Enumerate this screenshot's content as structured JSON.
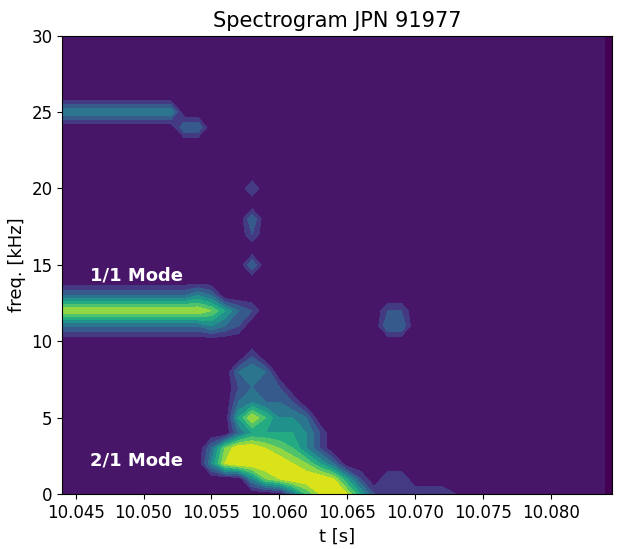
{
  "chart_data": {
    "type": "heatmap",
    "title": "Spectrogram JPN 91977",
    "x_label": "t [s]",
    "y_label": "freq. [kHz]",
    "xlim": [
      10.044,
      10.0845
    ],
    "ylim": [
      0,
      30
    ],
    "xticks": [
      10.045,
      {
        "value": 10.05,
        "label": "10.050"
      },
      10.055,
      {
        "value": 10.06,
        "label": "10.060"
      },
      10.065,
      {
        "value": 10.07,
        "label": "10.070"
      },
      10.075,
      {
        "value": 10.08,
        "label": "10.080"
      }
    ],
    "yticks": [
      0,
      5,
      10,
      15,
      20,
      25,
      30
    ],
    "zlim": [
      0,
      9
    ],
    "annotations": [
      {
        "text": "1/1 Mode",
        "x": 10.0495,
        "y": 14.3
      },
      {
        "text": "2/1 Mode",
        "x": 10.0495,
        "y": 2.2
      }
    ],
    "x": [
      10.044,
      10.045,
      10.046,
      10.047,
      10.048,
      10.049,
      10.05,
      10.051,
      10.052,
      10.053,
      10.054,
      10.055,
      10.056,
      10.057,
      10.058,
      10.059,
      10.06,
      10.061,
      10.062,
      10.063,
      10.064,
      10.065,
      10.066,
      10.067,
      10.068,
      10.069,
      10.07,
      10.071,
      10.072,
      10.073,
      10.074,
      10.075,
      10.076,
      10.077,
      10.078,
      10.079,
      10.08,
      10.081,
      10.082,
      10.083,
      10.084
    ],
    "y": [
      0,
      1,
      2,
      3,
      4,
      5,
      6,
      7,
      8,
      9,
      10,
      11,
      12,
      13,
      14,
      15,
      16,
      17,
      18,
      19,
      20,
      21,
      22,
      23,
      24,
      25,
      26,
      27,
      28,
      29,
      30
    ],
    "z": [
      [
        0,
        0,
        0,
        0,
        0,
        0,
        0,
        0,
        0,
        0,
        0,
        0,
        0,
        0,
        0,
        0,
        0,
        3,
        6,
        8,
        9,
        8,
        5,
        2,
        1,
        2,
        2,
        2,
        2,
        1,
        1,
        0,
        0,
        0,
        0,
        0,
        0,
        0,
        0,
        0,
        0
      ],
      [
        0,
        0,
        0,
        0,
        0,
        0,
        0,
        0,
        0,
        0,
        0,
        0,
        0,
        0,
        4,
        7,
        8,
        9,
        9,
        9,
        8,
        5,
        2,
        0,
        2,
        2,
        0,
        0,
        0,
        0,
        0,
        0,
        0,
        0,
        0,
        0,
        0,
        0,
        0,
        0,
        0
      ],
      [
        0,
        0,
        0,
        0,
        0,
        0,
        0,
        0,
        0,
        0,
        0,
        4,
        8,
        9,
        9,
        9,
        9,
        8,
        7,
        5,
        3,
        0,
        0,
        0,
        0,
        0,
        0,
        0,
        0,
        0,
        0,
        0,
        0,
        0,
        0,
        0,
        0,
        0,
        0,
        0,
        0
      ],
      [
        0,
        0,
        0,
        0,
        0,
        0,
        0,
        0,
        0,
        0,
        0,
        3,
        7,
        9,
        9,
        8,
        7,
        6,
        4,
        2,
        0,
        0,
        0,
        0,
        0,
        0,
        0,
        0,
        0,
        0,
        0,
        0,
        0,
        0,
        0,
        0,
        0,
        0,
        0,
        0,
        0
      ],
      [
        0,
        0,
        0,
        0,
        0,
        0,
        0,
        0,
        0,
        0,
        0,
        0,
        0,
        3,
        5,
        5,
        5,
        5,
        4,
        2,
        0,
        0,
        0,
        0,
        0,
        0,
        0,
        0,
        0,
        0,
        0,
        0,
        0,
        0,
        0,
        0,
        0,
        0,
        0,
        0,
        0
      ],
      [
        0,
        0,
        0,
        0,
        0,
        0,
        0,
        0,
        0,
        0,
        0,
        0,
        0,
        5,
        8,
        6,
        4,
        4,
        3,
        0,
        0,
        0,
        0,
        0,
        0,
        0,
        0,
        0,
        0,
        0,
        0,
        0,
        0,
        0,
        0,
        0,
        0,
        0,
        0,
        0,
        0
      ],
      [
        0,
        0,
        0,
        0,
        0,
        0,
        0,
        0,
        0,
        0,
        0,
        0,
        0,
        3,
        4,
        3,
        3,
        2,
        0,
        0,
        0,
        0,
        0,
        0,
        0,
        0,
        0,
        0,
        0,
        0,
        0,
        0,
        0,
        0,
        0,
        0,
        0,
        0,
        0,
        0,
        0
      ],
      [
        0,
        0,
        0,
        0,
        0,
        0,
        0,
        0,
        0,
        0,
        0,
        0,
        0,
        2,
        3,
        3,
        2,
        0,
        0,
        0,
        0,
        0,
        0,
        0,
        0,
        0,
        0,
        0,
        0,
        0,
        0,
        0,
        0,
        0,
        0,
        0,
        0,
        0,
        0,
        0,
        0
      ],
      [
        0,
        0,
        0,
        0,
        0,
        0,
        0,
        0,
        0,
        0,
        0,
        0,
        0,
        3,
        4,
        3,
        0,
        0,
        0,
        0,
        0,
        0,
        0,
        0,
        0,
        0,
        0,
        0,
        0,
        0,
        0,
        0,
        0,
        0,
        0,
        0,
        0,
        0,
        0,
        0,
        0
      ],
      [
        0,
        0,
        0,
        0,
        0,
        0,
        0,
        0,
        0,
        0,
        0,
        0,
        0,
        0,
        2,
        0,
        0,
        0,
        0,
        0,
        0,
        0,
        0,
        0,
        0,
        0,
        0,
        0,
        0,
        0,
        0,
        0,
        0,
        0,
        0,
        0,
        0,
        0,
        0,
        0,
        0
      ],
      [
        0,
        0,
        0,
        0,
        0,
        0,
        0,
        0,
        0,
        0,
        0,
        0,
        0,
        0,
        0,
        0,
        0,
        0,
        0,
        0,
        0,
        0,
        0,
        0,
        0,
        0,
        0,
        0,
        0,
        0,
        0,
        0,
        0,
        0,
        0,
        0,
        0,
        0,
        0,
        0,
        0
      ],
      [
        3,
        3,
        3,
        3,
        3,
        3,
        3,
        3,
        3,
        3,
        3,
        4,
        3,
        2,
        0,
        0,
        0,
        0,
        0,
        0,
        0,
        0,
        0,
        0,
        3,
        3,
        0,
        0,
        0,
        0,
        0,
        0,
        0,
        0,
        0,
        0,
        0,
        0,
        0,
        0,
        0
      ],
      [
        8,
        8,
        8,
        8,
        8,
        8,
        8,
        8,
        8,
        8,
        8,
        7,
        5,
        3,
        2,
        0,
        0,
        0,
        0,
        0,
        0,
        0,
        0,
        0,
        2,
        2,
        0,
        0,
        0,
        0,
        0,
        0,
        0,
        0,
        0,
        0,
        0,
        0,
        0,
        0,
        0
      ],
      [
        3,
        3,
        3,
        3,
        3,
        3,
        3,
        3,
        3,
        3,
        4,
        3,
        0,
        0,
        0,
        0,
        0,
        0,
        0,
        0,
        0,
        0,
        0,
        0,
        0,
        0,
        0,
        0,
        0,
        0,
        0,
        0,
        0,
        0,
        0,
        0,
        0,
        0,
        0,
        0,
        0
      ],
      [
        0,
        0,
        0,
        0,
        0,
        0,
        0,
        0,
        0,
        0,
        0,
        0,
        0,
        0,
        0,
        0,
        0,
        0,
        0,
        0,
        0,
        0,
        0,
        0,
        0,
        0,
        0,
        0,
        0,
        0,
        0,
        0,
        0,
        0,
        0,
        0,
        0,
        0,
        0,
        0,
        0
      ],
      [
        0,
        0,
        0,
        0,
        0,
        0,
        0,
        0,
        0,
        0,
        0,
        0,
        0,
        0,
        3,
        0,
        0,
        0,
        0,
        0,
        0,
        0,
        0,
        0,
        0,
        0,
        0,
        0,
        0,
        0,
        0,
        0,
        0,
        0,
        0,
        0,
        0,
        0,
        0,
        0,
        0
      ],
      [
        0,
        0,
        0,
        0,
        0,
        0,
        0,
        0,
        0,
        0,
        0,
        0,
        0,
        0,
        0,
        0,
        0,
        0,
        0,
        0,
        0,
        0,
        0,
        0,
        0,
        0,
        0,
        0,
        0,
        0,
        0,
        0,
        0,
        0,
        0,
        0,
        0,
        0,
        0,
        0,
        0
      ],
      [
        0,
        0,
        0,
        0,
        0,
        0,
        0,
        0,
        0,
        0,
        0,
        0,
        0,
        0,
        2,
        0,
        0,
        0,
        0,
        0,
        0,
        0,
        0,
        0,
        0,
        0,
        0,
        0,
        0,
        0,
        0,
        0,
        0,
        0,
        0,
        0,
        0,
        0,
        0,
        0,
        0
      ],
      [
        0,
        0,
        0,
        0,
        0,
        0,
        0,
        0,
        0,
        0,
        0,
        0,
        0,
        0,
        3,
        0,
        0,
        0,
        0,
        0,
        0,
        0,
        0,
        0,
        0,
        0,
        0,
        0,
        0,
        0,
        0,
        0,
        0,
        0,
        0,
        0,
        0,
        0,
        0,
        0,
        0
      ],
      [
        0,
        0,
        0,
        0,
        0,
        0,
        0,
        0,
        0,
        0,
        0,
        0,
        0,
        0,
        0,
        0,
        0,
        0,
        0,
        0,
        0,
        0,
        0,
        0,
        0,
        0,
        0,
        0,
        0,
        0,
        0,
        0,
        0,
        0,
        0,
        0,
        0,
        0,
        0,
        0,
        0
      ],
      [
        0,
        0,
        0,
        0,
        0,
        0,
        0,
        0,
        0,
        0,
        0,
        0,
        0,
        0,
        2,
        0,
        0,
        0,
        0,
        0,
        0,
        0,
        0,
        0,
        0,
        0,
        0,
        0,
        0,
        0,
        0,
        0,
        0,
        0,
        0,
        0,
        0,
        0,
        0,
        0,
        0
      ],
      [
        0,
        0,
        0,
        0,
        0,
        0,
        0,
        0,
        0,
        0,
        0,
        0,
        0,
        0,
        0,
        0,
        0,
        0,
        0,
        0,
        0,
        0,
        0,
        0,
        0,
        0,
        0,
        0,
        0,
        0,
        0,
        0,
        0,
        0,
        0,
        0,
        0,
        0,
        0,
        0,
        0
      ],
      [
        0,
        0,
        0,
        0,
        0,
        0,
        0,
        0,
        0,
        0,
        0,
        0,
        0,
        0,
        0,
        0,
        0,
        0,
        0,
        0,
        0,
        0,
        0,
        0,
        0,
        0,
        0,
        0,
        0,
        0,
        0,
        0,
        0,
        0,
        0,
        0,
        0,
        0,
        0,
        0,
        0
      ],
      [
        0,
        0,
        0,
        0,
        0,
        0,
        0,
        0,
        0,
        0,
        0,
        0,
        0,
        0,
        0,
        0,
        0,
        0,
        0,
        0,
        0,
        0,
        0,
        0,
        0,
        0,
        0,
        0,
        0,
        0,
        0,
        0,
        0,
        0,
        0,
        0,
        0,
        0,
        0,
        0,
        0
      ],
      [
        0,
        0,
        0,
        0,
        0,
        0,
        0,
        0,
        0,
        3,
        3,
        0,
        0,
        0,
        0,
        0,
        0,
        0,
        0,
        0,
        0,
        0,
        0,
        0,
        0,
        0,
        0,
        0,
        0,
        0,
        0,
        0,
        0,
        0,
        0,
        0,
        0,
        0,
        0,
        0,
        0
      ],
      [
        4,
        4,
        4,
        4,
        4,
        4,
        4,
        4,
        4,
        0,
        0,
        0,
        0,
        0,
        0,
        0,
        0,
        0,
        0,
        0,
        0,
        0,
        0,
        0,
        0,
        0,
        0,
        0,
        0,
        0,
        0,
        0,
        0,
        0,
        0,
        0,
        0,
        0,
        0,
        0,
        0
      ],
      [
        0,
        0,
        0,
        0,
        0,
        0,
        0,
        0,
        0,
        0,
        0,
        0,
        0,
        0,
        0,
        0,
        0,
        0,
        0,
        0,
        0,
        0,
        0,
        0,
        0,
        0,
        0,
        0,
        0,
        0,
        0,
        0,
        0,
        0,
        0,
        0,
        0,
        0,
        0,
        0,
        0
      ],
      [
        0,
        0,
        0,
        0,
        0,
        0,
        0,
        0,
        0,
        0,
        0,
        0,
        0,
        0,
        0,
        0,
        0,
        0,
        0,
        0,
        0,
        0,
        0,
        0,
        0,
        0,
        0,
        0,
        0,
        0,
        0,
        0,
        0,
        0,
        0,
        0,
        0,
        0,
        0,
        0,
        0
      ],
      [
        0,
        0,
        0,
        0,
        0,
        0,
        0,
        0,
        0,
        0,
        0,
        0,
        0,
        0,
        0,
        0,
        0,
        0,
        0,
        0,
        0,
        0,
        0,
        0,
        0,
        0,
        0,
        0,
        0,
        0,
        0,
        0,
        0,
        0,
        0,
        0,
        0,
        0,
        0,
        0,
        0
      ],
      [
        0,
        0,
        0,
        0,
        0,
        0,
        0,
        0,
        0,
        0,
        0,
        0,
        0,
        0,
        0,
        0,
        0,
        0,
        0,
        0,
        0,
        0,
        0,
        0,
        0,
        0,
        0,
        0,
        0,
        0,
        0,
        0,
        0,
        0,
        0,
        0,
        0,
        0,
        0,
        0,
        0
      ],
      [
        0,
        0,
        0,
        0,
        0,
        0,
        0,
        0,
        0,
        0,
        0,
        0,
        0,
        0,
        0,
        0,
        0,
        0,
        0,
        0,
        0,
        0,
        0,
        0,
        0,
        0,
        0,
        0,
        0,
        0,
        0,
        0,
        0,
        0,
        0,
        0,
        0,
        0,
        0,
        0,
        0
      ]
    ]
  }
}
